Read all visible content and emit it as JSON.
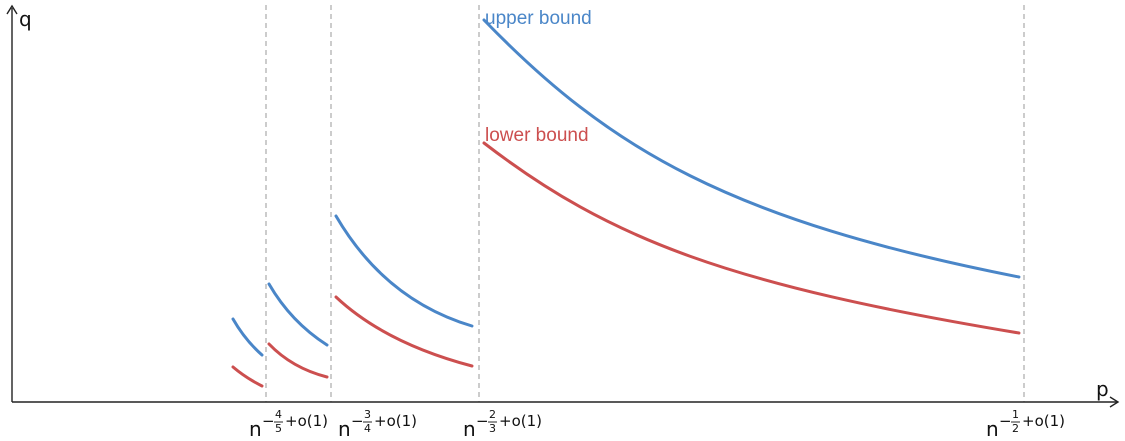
{
  "axes": {
    "x_label": "p",
    "y_label": "q"
  },
  "series_labels": {
    "upper": "upper bound",
    "lower": "lower bound"
  },
  "colors": {
    "upper": "#4a86c8",
    "lower": "#cc4f4f",
    "axis": "#222222",
    "guide": "#aaaaaa"
  },
  "thresholds": [
    {
      "base": "n",
      "sign": "−",
      "num": "4",
      "den": "5",
      "suffix": "+o(1)"
    },
    {
      "base": "n",
      "sign": "−",
      "num": "3",
      "den": "4",
      "suffix": "+o(1)"
    },
    {
      "base": "n",
      "sign": "−",
      "num": "2",
      "den": "3",
      "suffix": "+o(1)"
    },
    {
      "base": "n",
      "sign": "−",
      "num": "1",
      "den": "2",
      "suffix": "+o(1)"
    }
  ]
}
